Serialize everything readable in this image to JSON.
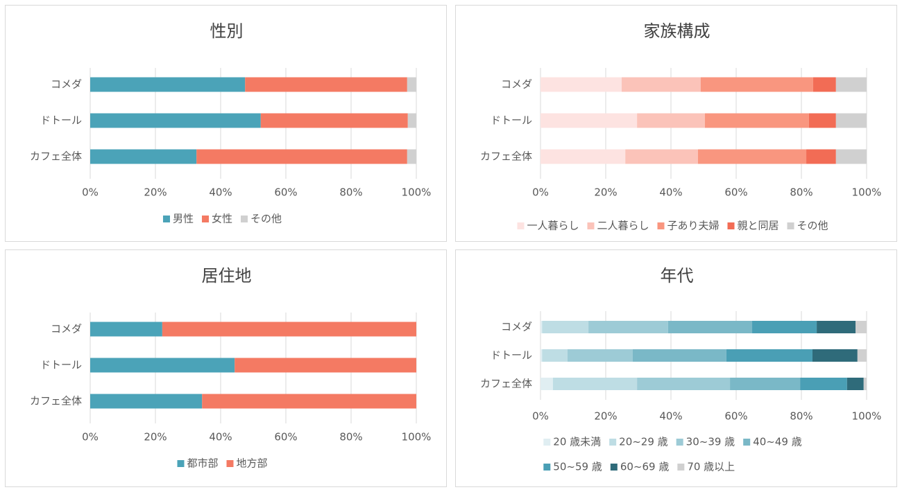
{
  "chart_data": [
    {
      "type": "bar",
      "stacked": true,
      "orientation": "horizontal",
      "title": "性別",
      "categories": [
        "コメダ",
        "ドトール",
        "カフェ全体"
      ],
      "series": [
        {
          "name": "男性",
          "color": "#4ba3b8",
          "values": [
            47.5,
            52.3,
            32.6
          ]
        },
        {
          "name": "女性",
          "color": "#f47a63",
          "values": [
            49.7,
            45.1,
            64.6
          ]
        },
        {
          "name": "その他",
          "color": "#d0d0d0",
          "values": [
            2.8,
            2.6,
            2.8
          ]
        }
      ],
      "xlim": [
        0,
        100
      ],
      "xticks": [
        {
          "value": 0,
          "label": "0%"
        },
        {
          "value": 20,
          "label": "20%"
        },
        {
          "value": 40,
          "label": "40%"
        },
        {
          "value": 60,
          "label": "60%"
        },
        {
          "value": 80,
          "label": "80%"
        },
        {
          "value": 100,
          "label": "100%"
        }
      ],
      "grid": true,
      "legend": "bottom"
    },
    {
      "type": "bar",
      "stacked": true,
      "orientation": "horizontal",
      "title": "家族構成",
      "categories": [
        "コメダ",
        "ドトール",
        "カフェ全体"
      ],
      "series": [
        {
          "name": "一人暮らし",
          "color": "#fde3e1",
          "values": [
            24.9,
            29.6,
            26.0
          ]
        },
        {
          "name": "二人暮らし",
          "color": "#fbc3b9",
          "values": [
            24.2,
            20.8,
            22.3
          ]
        },
        {
          "name": "子あり夫婦",
          "color": "#f9967f",
          "values": [
            34.5,
            31.9,
            33.2
          ]
        },
        {
          "name": "親と同居",
          "color": "#f26c55",
          "values": [
            7.0,
            8.3,
            9.1
          ]
        },
        {
          "name": "その他",
          "color": "#d0d0d0",
          "values": [
            9.4,
            9.4,
            9.4
          ]
        }
      ],
      "xlim": [
        0,
        100
      ],
      "xticks": [
        {
          "value": 0,
          "label": "0%"
        },
        {
          "value": 20,
          "label": "20%"
        },
        {
          "value": 40,
          "label": "40%"
        },
        {
          "value": 60,
          "label": "60%"
        },
        {
          "value": 80,
          "label": "80%"
        },
        {
          "value": 100,
          "label": "100%"
        }
      ],
      "grid": true,
      "legend": "bottom"
    },
    {
      "type": "bar",
      "stacked": true,
      "orientation": "horizontal",
      "title": "居住地",
      "categories": [
        "コメダ",
        "ドトール",
        "カフェ全体"
      ],
      "series": [
        {
          "name": "都市部",
          "color": "#4ba3b8",
          "values": [
            22.1,
            44.3,
            34.3
          ]
        },
        {
          "name": "地方部",
          "color": "#f47a63",
          "values": [
            77.9,
            55.7,
            65.7
          ]
        }
      ],
      "xlim": [
        0,
        100
      ],
      "xticks": [
        {
          "value": 0,
          "label": "0%"
        },
        {
          "value": 20,
          "label": "20%"
        },
        {
          "value": 40,
          "label": "40%"
        },
        {
          "value": 60,
          "label": "60%"
        },
        {
          "value": 80,
          "label": "80%"
        },
        {
          "value": 100,
          "label": "100%"
        }
      ],
      "grid": true,
      "legend": "bottom"
    },
    {
      "type": "bar",
      "stacked": true,
      "orientation": "horizontal",
      "title": "年代",
      "categories": [
        "コメダ",
        "ドトール",
        "カフェ全体"
      ],
      "series": [
        {
          "name": "20 歳未満",
          "color": "#e0eef2",
          "values": [
            0.5,
            0.5,
            3.8
          ]
        },
        {
          "name": "20~29 歳",
          "color": "#bedde4",
          "values": [
            14.2,
            7.8,
            25.8
          ]
        },
        {
          "name": "30~39 歳",
          "color": "#9dcbd6",
          "values": [
            24.4,
            20.0,
            28.5
          ]
        },
        {
          "name": "40~49 歳",
          "color": "#7ab8c7",
          "values": [
            25.8,
            28.7,
            21.5
          ]
        },
        {
          "name": "50~59 歳",
          "color": "#4a9fb5",
          "values": [
            19.8,
            26.4,
            14.4
          ]
        },
        {
          "name": "60~69 歳",
          "color": "#2f6b7a",
          "values": [
            11.9,
            13.8,
            5.1
          ]
        },
        {
          "name": "70 歳以上",
          "color": "#d0d0d0",
          "values": [
            3.4,
            2.8,
            0.9
          ]
        }
      ],
      "xlim": [
        0,
        100
      ],
      "xticks": [
        {
          "value": 0,
          "label": "0%"
        },
        {
          "value": 20,
          "label": "20%"
        },
        {
          "value": 40,
          "label": "40%"
        },
        {
          "value": 60,
          "label": "60%"
        },
        {
          "value": 80,
          "label": "80%"
        },
        {
          "value": 100,
          "label": "100%"
        }
      ],
      "grid": true,
      "legend": "bottom"
    }
  ]
}
